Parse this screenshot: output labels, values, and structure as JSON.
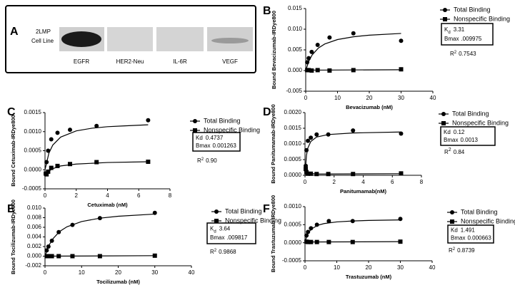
{
  "blot": {
    "panel": "A",
    "row_label": [
      "2LMP",
      "Cell Line"
    ],
    "lanes": [
      "EGFR",
      "HER2-Neu",
      "IL-6R",
      "VEGF"
    ]
  },
  "chart_data": [
    {
      "type": "scatter",
      "panel": "B",
      "xlabel": "Bevacizumab (nM)",
      "ylabel": "Bound Bevacizumab-IRDye800",
      "x": [
        0.47,
        0.94,
        1.875,
        3.75,
        7.5,
        15,
        30
      ],
      "xlim": [
        0,
        40
      ],
      "xticks": [
        0,
        10,
        20,
        30,
        40
      ],
      "ylim": [
        -0.005,
        0.015
      ],
      "yticks": [
        {
          "value": -0.005,
          "label": "-0.005"
        },
        {
          "value": 0,
          "label": "0.000"
        },
        {
          "value": 0.005,
          "label": "0.005"
        },
        {
          "value": 0.01,
          "label": "0.010"
        },
        {
          "value": 0.015,
          "label": "0.015"
        }
      ],
      "series": [
        {
          "name": "Total Binding",
          "color": "#000000",
          "marker": "circle",
          "values": [
            0.002,
            0.003,
            0.0045,
            0.0062,
            0.008,
            0.009,
            0.0072
          ],
          "fit": {
            "x": [
              0,
              1,
              2,
              4,
              6,
              10,
              15,
              20,
              30
            ],
            "values": [
              0,
              0.00232,
              0.00376,
              0.00546,
              0.00643,
              0.0075,
              0.00817,
              0.00856,
              0.00898
            ]
          }
        },
        {
          "name": "Nonspecific Binding",
          "color": "#000000",
          "marker": "square",
          "values": [
            0.0001,
            0.0001,
            0,
            0.0001,
            0,
            0.0001,
            0.0003
          ],
          "fit": {
            "x": [
              0,
              2,
              30
            ],
            "values": [
              0,
              0.0001,
              0.0002
            ]
          }
        }
      ],
      "annotation": {
        "kd_label": "K",
        "kd_sub": "d",
        "kd": "3.31",
        "bmax_label": "Bmax",
        "bmax": ".009975",
        "r2_label": "R",
        "r2_sup": "2",
        "r2": "0.7543"
      }
    },
    {
      "type": "scatter",
      "panel": "C",
      "xlabel": "Cetuximab (nM)",
      "ylabel": "Bound Cetuximab-IRDye800",
      "x": [
        0.05,
        0.1,
        0.2,
        0.4,
        0.8,
        1.6,
        3.3,
        6.6
      ],
      "xlim": [
        0,
        8
      ],
      "xticks": [
        0,
        2,
        4,
        6,
        8
      ],
      "ylim": [
        -0.0005,
        0.0015
      ],
      "yticks": [
        {
          "value": -0.0005,
          "label": "-0.0005"
        },
        {
          "value": 0,
          "label": "0.0000"
        },
        {
          "value": 0.0005,
          "label": "0.0005"
        },
        {
          "value": 0.001,
          "label": "0.0010"
        },
        {
          "value": 0.0015,
          "label": "0.0015"
        }
      ],
      "series": [
        {
          "name": "Total Binding",
          "color": "#000000",
          "marker": "circle",
          "values": [
            -0.0001,
            0.0002,
            0.0005,
            0.0008,
            0.00097,
            0.00105,
            0.00115,
            0.0013
          ],
          "fit": {
            "x": [
              0,
              0.25,
              0.5,
              1,
              2,
              3,
              4,
              5,
              6.6
            ],
            "values": [
              0,
              0.000437,
              0.000649,
              0.000857,
              0.00102,
              0.00109,
              0.00113,
              0.00115,
              0.00118
            ]
          }
        },
        {
          "name": "Nonspecific Binding",
          "color": "#000000",
          "marker": "square",
          "values": [
            -0.0001,
            -0.00012,
            -5e-05,
            5e-05,
            0.0001,
            0.00015,
            0.0002,
            0.00021
          ],
          "fit": {
            "x": [
              0,
              0.5,
              1,
              2,
              4,
              6.6
            ],
            "values": [
              -0.0001,
              3e-05,
              0.0001,
              0.00015,
              0.00019,
              0.00021
            ]
          }
        }
      ],
      "annotation": {
        "kd_label": "Kd",
        "kd": "0.4737",
        "bmax_label": "Bmax",
        "bmax": "0.001263",
        "r2_label": "R",
        "r2_sup": "2",
        "r2": "0.90"
      }
    },
    {
      "type": "scatter",
      "panel": "D",
      "xlabel": "Panitumamab(nM)",
      "ylabel": "Bound Panitumamab-IRDye800",
      "x": [
        0.05,
        0.1,
        0.2,
        0.4,
        0.8,
        1.6,
        3.3,
        6.6
      ],
      "xlim": [
        0,
        8
      ],
      "xticks": [
        0,
        2,
        4,
        6,
        8
      ],
      "ylim": [
        0,
        0.002
      ],
      "yticks": [
        {
          "value": 0,
          "label": "0.0000"
        },
        {
          "value": 0.0005,
          "label": "0.0005"
        },
        {
          "value": 0.001,
          "label": "0.0010"
        },
        {
          "value": 0.0015,
          "label": "0.0015"
        },
        {
          "value": 0.002,
          "label": "0.0020"
        }
      ],
      "series": [
        {
          "name": "Total Binding",
          "color": "#000000",
          "marker": "circle",
          "values": [
            0.0003,
            0.0008,
            0.0011,
            0.0012,
            0.0013,
            0.0013,
            0.00143,
            0.00133
          ],
          "fit": {
            "x": [
              0,
              0.1,
              0.2,
              0.4,
              0.8,
              1.6,
              3.3,
              6.6
            ],
            "values": [
              0,
              0.000636,
              0.000875,
              0.00108,
              0.00122,
              0.0013,
              0.00135,
              0.00138
            ]
          }
        },
        {
          "name": "Nonspecific Binding",
          "color": "#000000",
          "marker": "square",
          "values": [
            0.0002,
            0.0001,
            5e-05,
            5e-05,
            4e-05,
            4e-05,
            4e-05,
            6e-05
          ],
          "fit": {
            "x": [
              0,
              0.2,
              1,
              6.6
            ],
            "values": [
              0.0003,
              6e-05,
              4e-05,
              5e-05
            ]
          }
        }
      ],
      "annotation": {
        "kd_label": "Kd",
        "kd": "0.12",
        "bmax_label": "Bmax",
        "bmax": "0.0013",
        "r2_label": "R",
        "r2_sup": "2",
        "r2": "0.84"
      }
    },
    {
      "type": "scatter",
      "panel": "E",
      "xlabel": "Tocilizumab (nM)",
      "ylabel": "Bound Tocilizumab-IRDye800",
      "x": [
        0.47,
        0.94,
        1.875,
        3.75,
        7.5,
        15,
        30
      ],
      "xlim": [
        0,
        40
      ],
      "xticks": [
        0,
        10,
        20,
        30,
        40
      ],
      "ylim": [
        -0.002,
        0.01
      ],
      "yticks": [
        {
          "value": -0.002,
          "label": "-0.002"
        },
        {
          "value": 0,
          "label": "0.000"
        },
        {
          "value": 0.002,
          "label": "0.002"
        },
        {
          "value": 0.004,
          "label": "0.004"
        },
        {
          "value": 0.006,
          "label": "0.006"
        },
        {
          "value": 0.008,
          "label": "0.008"
        },
        {
          "value": 0.01,
          "label": "0.010"
        }
      ],
      "series": [
        {
          "name": "Total Binding",
          "color": "#000000",
          "marker": "circle",
          "values": [
            0.0012,
            0.002,
            0.0032,
            0.005,
            0.0065,
            0.0079,
            0.009
          ],
          "fit": {
            "x": [
              0,
              1,
              2,
              4,
              6,
              10,
              15,
              20,
              30
            ],
            "values": [
              0,
              0.00212,
              0.00348,
              0.00514,
              0.00611,
              0.0072,
              0.0079,
              0.0083,
              0.00875
            ]
          }
        },
        {
          "name": "Nonspecific Binding",
          "color": "#000000",
          "marker": "square",
          "values": [
            0,
            0,
            0,
            0,
            0,
            0,
            0.0001
          ],
          "fit": {
            "x": [
              0,
              30
            ],
            "values": [
              0,
              0.0001
            ]
          }
        }
      ],
      "annotation": {
        "kd_label": "K",
        "kd_sub": "d",
        "kd": "3.64",
        "bmax_label": "Bmax",
        "bmax": ".009817",
        "r2_label": "R",
        "r2_sup": "2",
        "r2": "0.9868"
      }
    },
    {
      "type": "scatter",
      "panel": "F",
      "xlabel": "Trastuzumab (nM)",
      "ylabel": "Bound Trastuzumab-IRDye800",
      "x": [
        0.47,
        0.94,
        1.875,
        3.75,
        7.5,
        15,
        30
      ],
      "xlim": [
        0,
        40
      ],
      "xticks": [
        0,
        10,
        20,
        30,
        40
      ],
      "ylim": [
        -0.0005,
        0.001
      ],
      "yticks": [
        {
          "value": -0.0005,
          "label": "-0.0005"
        },
        {
          "value": 0,
          "label": "0.0000"
        },
        {
          "value": 0.0005,
          "label": "0.0005"
        },
        {
          "value": 0.001,
          "label": "0.0010"
        }
      ],
      "series": [
        {
          "name": "Total Binding",
          "color": "#000000",
          "marker": "circle",
          "values": [
            0.0002,
            0.0003,
            0.0004,
            0.0005,
            0.0006,
            0.0006,
            0.00066
          ],
          "fit": {
            "x": [
              0,
              0.5,
              1,
              2,
              4,
              6,
              10,
              15,
              20,
              30
            ],
            "values": [
              0,
              0.000167,
              0.000266,
              0.00038,
              0.000483,
              0.000531,
              0.000577,
              0.000603,
              0.000617,
              0.000632
            ]
          }
        },
        {
          "name": "Nonspecific Binding",
          "color": "#000000",
          "marker": "square",
          "values": [
            3e-05,
            2e-05,
            2e-05,
            2e-05,
            2e-05,
            2e-05,
            3e-05
          ],
          "fit": {
            "x": [
              0,
              30
            ],
            "values": [
              2e-05,
              3e-05
            ]
          }
        }
      ],
      "annotation": {
        "kd_label": "Kd",
        "kd": "1.491",
        "bmax_label": "Bmax",
        "bmax": "0.000663",
        "r2_label": "R",
        "r2_sup": "2",
        "r2": "0.8739"
      }
    }
  ]
}
